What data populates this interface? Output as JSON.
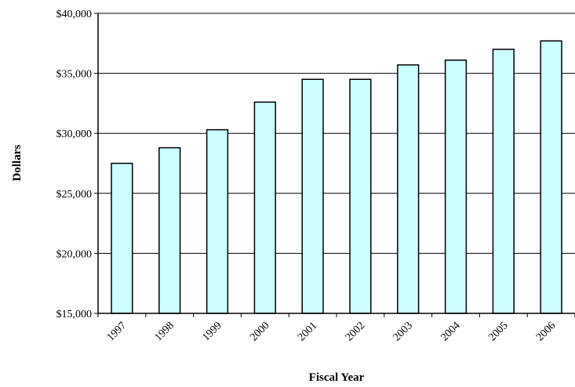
{
  "chart_data": {
    "type": "bar",
    "title": "",
    "xlabel": "Fiscal Year",
    "ylabel": "Dollars",
    "categories": [
      "1997",
      "1998",
      "1999",
      "2000",
      "2001",
      "2002",
      "2003",
      "2004",
      "2005",
      "2006"
    ],
    "values": [
      27500,
      28800,
      30300,
      32600,
      34500,
      34500,
      35700,
      36100,
      37000,
      37700
    ],
    "ylim": [
      15000,
      40000
    ],
    "yticks": [
      15000,
      20000,
      25000,
      30000,
      35000,
      40000
    ],
    "ytick_labels": [
      "$15,000",
      "$20,000",
      "$25,000",
      "$30,000",
      "$35,000",
      "$40,000"
    ],
    "grid": true,
    "legend": "none",
    "bar_color": "#ccffff",
    "bar_edge_color": "#000000"
  }
}
